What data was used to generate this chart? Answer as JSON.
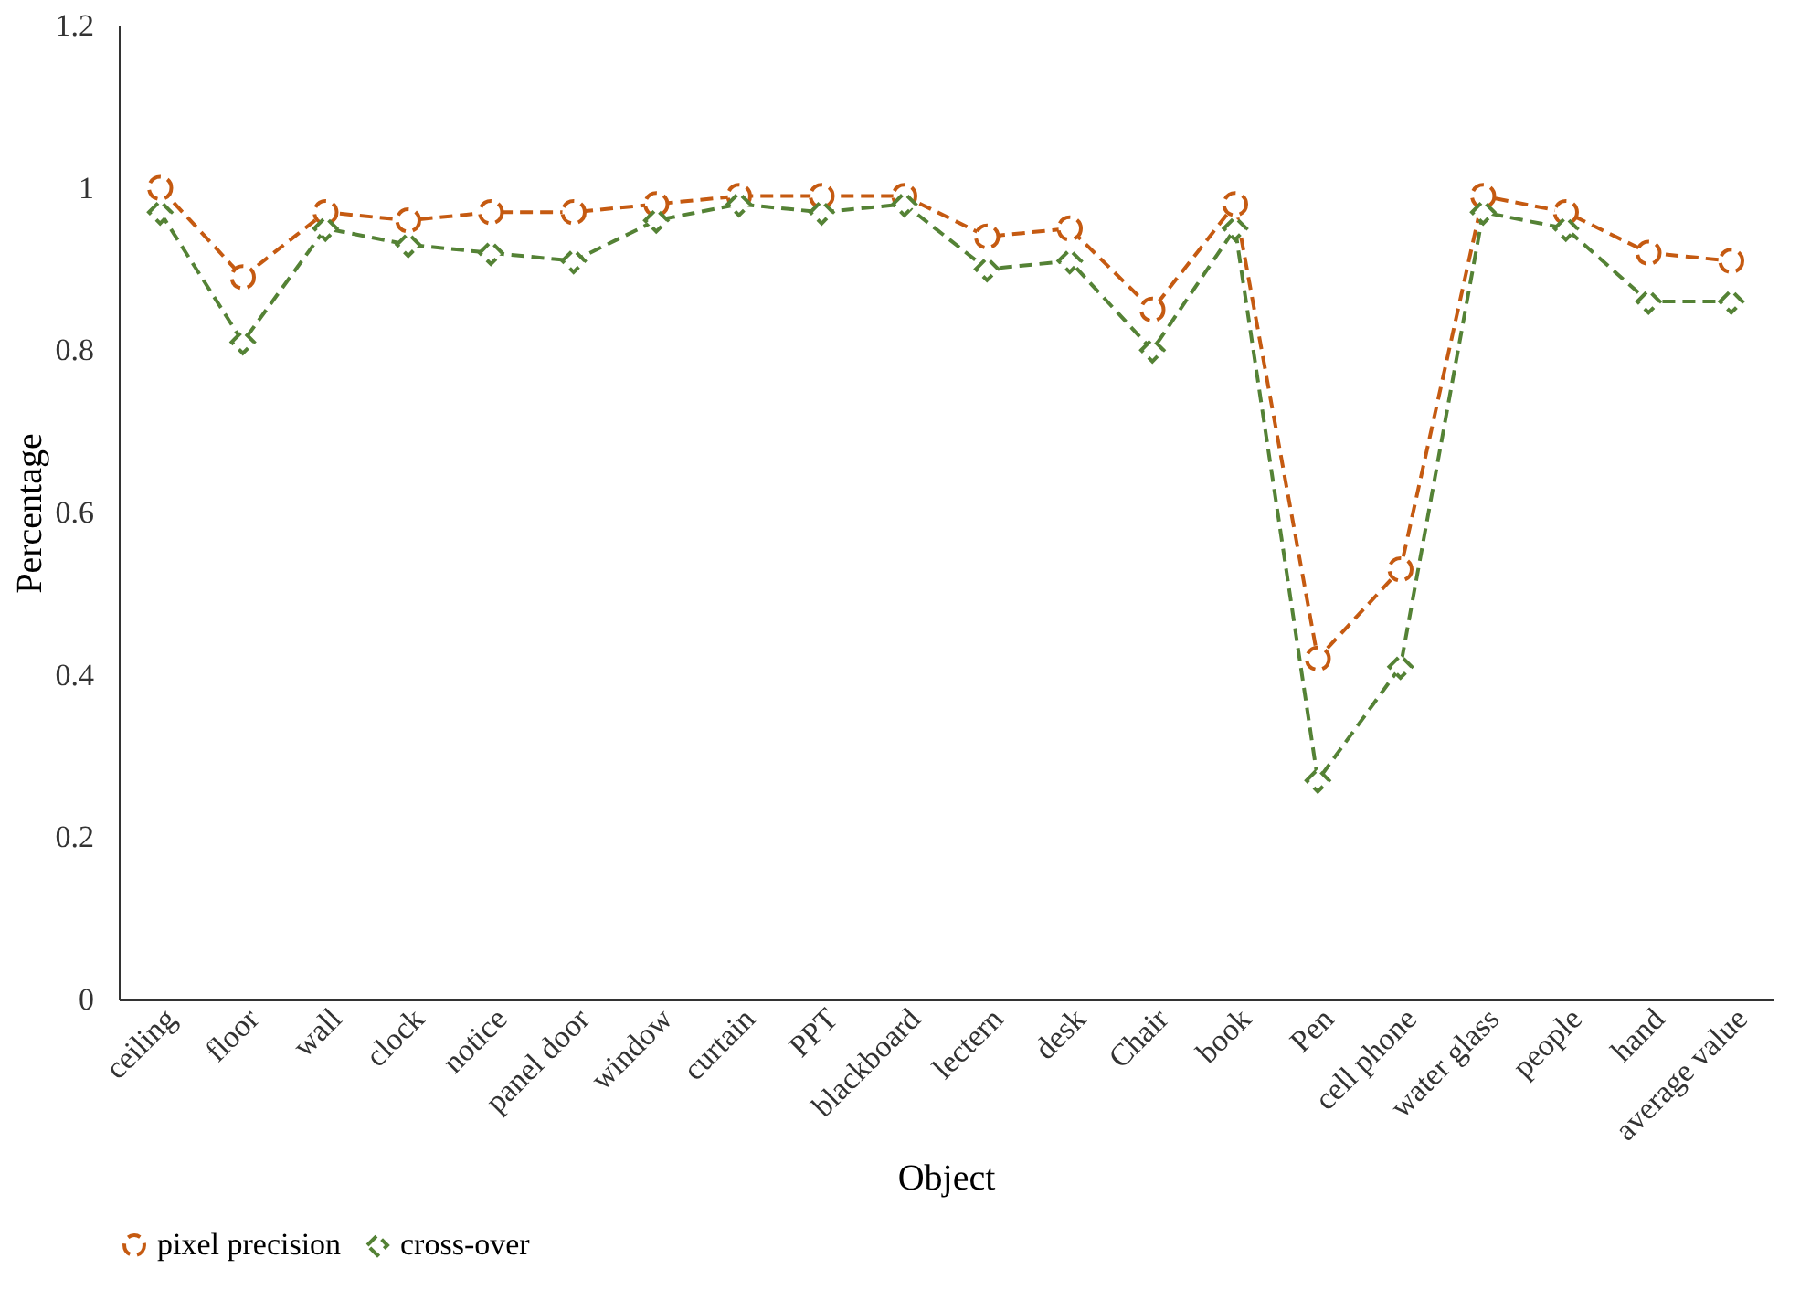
{
  "chart_data": {
    "type": "line",
    "xlabel": "Object",
    "ylabel": "Percentage",
    "categories": [
      "ceiling",
      "floor",
      "wall",
      "clock",
      "notice",
      "panel door",
      "window",
      "curtain",
      "PPT",
      "blackboard",
      "lectern",
      "desk",
      "Chair",
      "book",
      "Pen",
      "cell phone",
      "water glass",
      "people",
      "hand",
      "average value"
    ],
    "series": [
      {
        "name": "pixel precision",
        "color": "#c55a11",
        "marker": "circle",
        "line_style": "dashed",
        "values": [
          1.0,
          0.89,
          0.97,
          0.96,
          0.97,
          0.97,
          0.98,
          0.99,
          0.99,
          0.99,
          0.94,
          0.95,
          0.85,
          0.98,
          0.42,
          0.53,
          0.99,
          0.97,
          0.92,
          0.91
        ]
      },
      {
        "name": "cross-over",
        "color": "#548235",
        "marker": "diamond",
        "line_style": "dashed",
        "values": [
          0.97,
          0.81,
          0.95,
          0.93,
          0.92,
          0.91,
          0.96,
          0.98,
          0.97,
          0.98,
          0.9,
          0.91,
          0.8,
          0.95,
          0.27,
          0.41,
          0.97,
          0.95,
          0.86,
          0.86
        ]
      }
    ],
    "ylim": [
      0,
      1.2
    ],
    "yticks": [
      0,
      0.2,
      0.4,
      0.6,
      0.8,
      1,
      1.2
    ],
    "grid": false,
    "legend": "bottom"
  }
}
